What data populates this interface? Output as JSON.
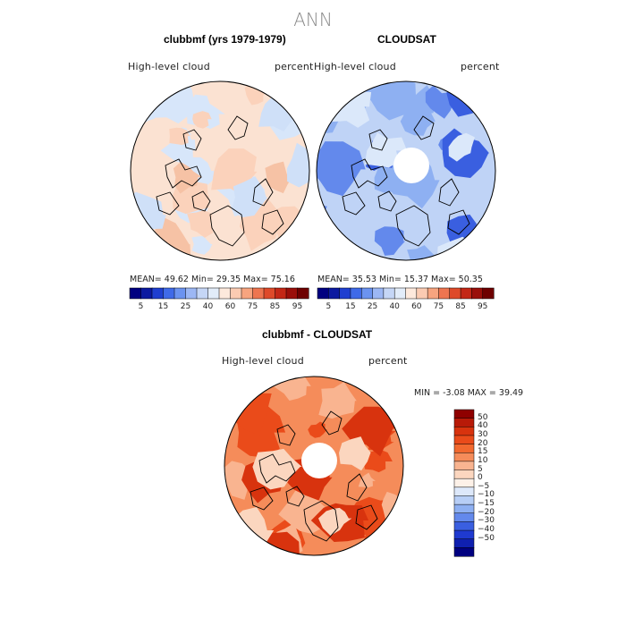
{
  "title": "ANN",
  "panels": {
    "model": {
      "title": "clubbmf (yrs 1979-1979)",
      "field": "High-level  cloud",
      "units": "percent",
      "stats": "MEAN=   49.62   Min=   29.35   Max=   75.16"
    },
    "obs": {
      "title": "CLOUDSAT",
      "field": "High-level  cloud",
      "units": "percent",
      "stats": "MEAN=   35.53   Min=   15.37   Max=   50.35"
    },
    "diff": {
      "title": "clubbmf - CLOUDSAT",
      "field": "High-level  cloud",
      "units": "percent",
      "stats": "MIN =   -3.08  MAX =   39.49"
    }
  },
  "colorbars": {
    "top_ticks": [
      "5",
      "15",
      "25",
      "40",
      "60",
      "75",
      "85",
      "95"
    ],
    "top_colors": [
      "#000080",
      "#0c1aa0",
      "#1f3fd0",
      "#3f6ae8",
      "#6b93f0",
      "#9cb7f4",
      "#c5d6f6",
      "#e2ecf9",
      "#fde9dc",
      "#fbcbb2",
      "#f7a47f",
      "#ee7550",
      "#de4a2a",
      "#c32716",
      "#9a0f0a",
      "#6e0000"
    ],
    "diff_levels": [
      "50",
      "40",
      "30",
      "20",
      "15",
      "10",
      "5",
      "0",
      "−5",
      "−10",
      "−15",
      "−20",
      "−30",
      "−40",
      "−50"
    ],
    "diff_colors": [
      "#8f0000",
      "#b81a08",
      "#d8330e",
      "#ea4b1a",
      "#f2692f",
      "#f58c5a",
      "#f9b490",
      "#fbd6bf",
      "#fdf1e8",
      "#dde8fa",
      "#b7cef6",
      "#8eb0f2",
      "#6389ec",
      "#3a5fe0",
      "#1f3ad0",
      "#0f20b0",
      "#000080"
    ]
  },
  "maps": {
    "model": {
      "base": "#fbe2d2",
      "patches": [
        [
          "#d7e6fa",
          0.45
        ],
        [
          "#fbd2bb",
          0.25
        ],
        [
          "#f6c2a5",
          0.12
        ],
        [
          "#cfe0f8",
          0.2
        ]
      ]
    },
    "obs": {
      "base": "#bfd3f6",
      "patches": [
        [
          "#8eb0f2",
          0.35
        ],
        [
          "#6389ec",
          0.2
        ],
        [
          "#3a5fe0",
          0.12
        ],
        [
          "#dbe8fa",
          0.18
        ]
      ]
    },
    "diff": {
      "base": "#f58c5a",
      "patches": [
        [
          "#ea4b1a",
          0.35
        ],
        [
          "#f9b490",
          0.25
        ],
        [
          "#d8330e",
          0.15
        ],
        [
          "#fbd6bf",
          0.12
        ]
      ]
    }
  }
}
